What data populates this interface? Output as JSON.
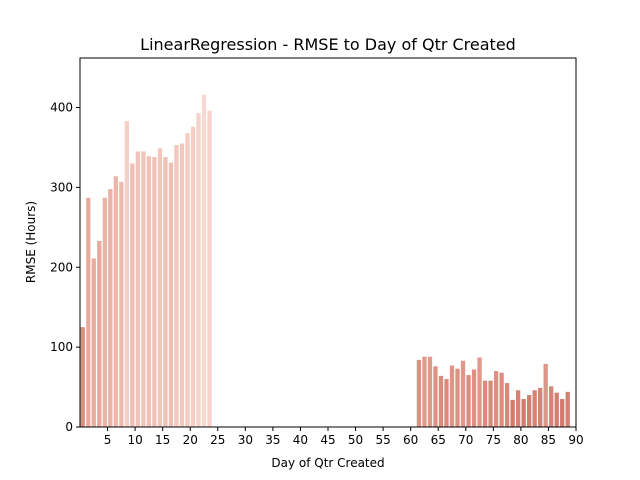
{
  "chart_data": {
    "type": "bar",
    "title": "LinearRegression - RMSE to Day of Qtr Created",
    "xlabel": "Day of Qtr Created",
    "ylabel": "RMSE (Hours)",
    "xlim": [
      0,
      90
    ],
    "ylim": [
      0,
      462
    ],
    "x_ticks": [
      5,
      10,
      15,
      20,
      25,
      30,
      35,
      40,
      45,
      50,
      55,
      60,
      65,
      70,
      75,
      80,
      85,
      90
    ],
    "y_ticks": [
      0,
      100,
      200,
      300,
      400
    ],
    "grid": false,
    "legend": "none",
    "bars": [
      {
        "x": 0,
        "y": 125,
        "color": "#dc8e80"
      },
      {
        "x": 1,
        "y": 287,
        "color": "#e8ac9f"
      },
      {
        "x": 2,
        "y": 211,
        "color": "#e9ac9f"
      },
      {
        "x": 3,
        "y": 233,
        "color": "#e7aa9d"
      },
      {
        "x": 4,
        "y": 287,
        "color": "#ebb4a7"
      },
      {
        "x": 5,
        "y": 298,
        "color": "#ebb3a6"
      },
      {
        "x": 6,
        "y": 314,
        "color": "#ecb7aa"
      },
      {
        "x": 7,
        "y": 307,
        "color": "#edb9ad"
      },
      {
        "x": 8,
        "y": 383,
        "color": "#f5cec5"
      },
      {
        "x": 9,
        "y": 330,
        "color": "#efbfb3"
      },
      {
        "x": 10,
        "y": 345,
        "color": "#f1c4b9"
      },
      {
        "x": 11,
        "y": 345,
        "color": "#f1c4b9"
      },
      {
        "x": 12,
        "y": 339,
        "color": "#f0c1b6"
      },
      {
        "x": 13,
        "y": 338,
        "color": "#f0c1b6"
      },
      {
        "x": 14,
        "y": 349,
        "color": "#f2c6bb"
      },
      {
        "x": 15,
        "y": 338,
        "color": "#f0c1b6"
      },
      {
        "x": 16,
        "y": 331,
        "color": "#efbfb4"
      },
      {
        "x": 17,
        "y": 353,
        "color": "#f2c7bc"
      },
      {
        "x": 18,
        "y": 355,
        "color": "#f2c8bd"
      },
      {
        "x": 19,
        "y": 368,
        "color": "#f4ccc2"
      },
      {
        "x": 20,
        "y": 376,
        "color": "#f5cfc5"
      },
      {
        "x": 21,
        "y": 393,
        "color": "#f6d3ca"
      },
      {
        "x": 22,
        "y": 416,
        "color": "#f8d9d1"
      },
      {
        "x": 23,
        "y": 396,
        "color": "#f7d4cb"
      },
      {
        "x": 61,
        "y": 84,
        "color": "#dc9283"
      },
      {
        "x": 62,
        "y": 88,
        "color": "#e1998b"
      },
      {
        "x": 63,
        "y": 88,
        "color": "#e1998b"
      },
      {
        "x": 64,
        "y": 76,
        "color": "#dd9384"
      },
      {
        "x": 65,
        "y": 64,
        "color": "#d98c7d"
      },
      {
        "x": 66,
        "y": 60,
        "color": "#d98b7c"
      },
      {
        "x": 67,
        "y": 77,
        "color": "#de9486"
      },
      {
        "x": 68,
        "y": 73,
        "color": "#dc9183"
      },
      {
        "x": 69,
        "y": 83,
        "color": "#df9789"
      },
      {
        "x": 70,
        "y": 65,
        "color": "#da8e80"
      },
      {
        "x": 71,
        "y": 72,
        "color": "#dc9183"
      },
      {
        "x": 72,
        "y": 87,
        "color": "#e0988a"
      },
      {
        "x": 73,
        "y": 58,
        "color": "#d88a7b"
      },
      {
        "x": 74,
        "y": 58,
        "color": "#d88a7b"
      },
      {
        "x": 75,
        "y": 70,
        "color": "#db9082"
      },
      {
        "x": 76,
        "y": 68,
        "color": "#db8f81"
      },
      {
        "x": 77,
        "y": 55,
        "color": "#d78878"
      },
      {
        "x": 78,
        "y": 34,
        "color": "#d07c6c"
      },
      {
        "x": 79,
        "y": 46,
        "color": "#d48374"
      },
      {
        "x": 80,
        "y": 35,
        "color": "#d07c6c"
      },
      {
        "x": 81,
        "y": 40,
        "color": "#d27f70"
      },
      {
        "x": 82,
        "y": 46,
        "color": "#d48374"
      },
      {
        "x": 83,
        "y": 49,
        "color": "#d58575"
      },
      {
        "x": 84,
        "y": 79,
        "color": "#de9587"
      },
      {
        "x": 85,
        "y": 51,
        "color": "#d58576"
      },
      {
        "x": 86,
        "y": 43,
        "color": "#d38172"
      },
      {
        "x": 87,
        "y": 35,
        "color": "#d07c6c"
      },
      {
        "x": 88,
        "y": 44,
        "color": "#d38172"
      }
    ]
  }
}
